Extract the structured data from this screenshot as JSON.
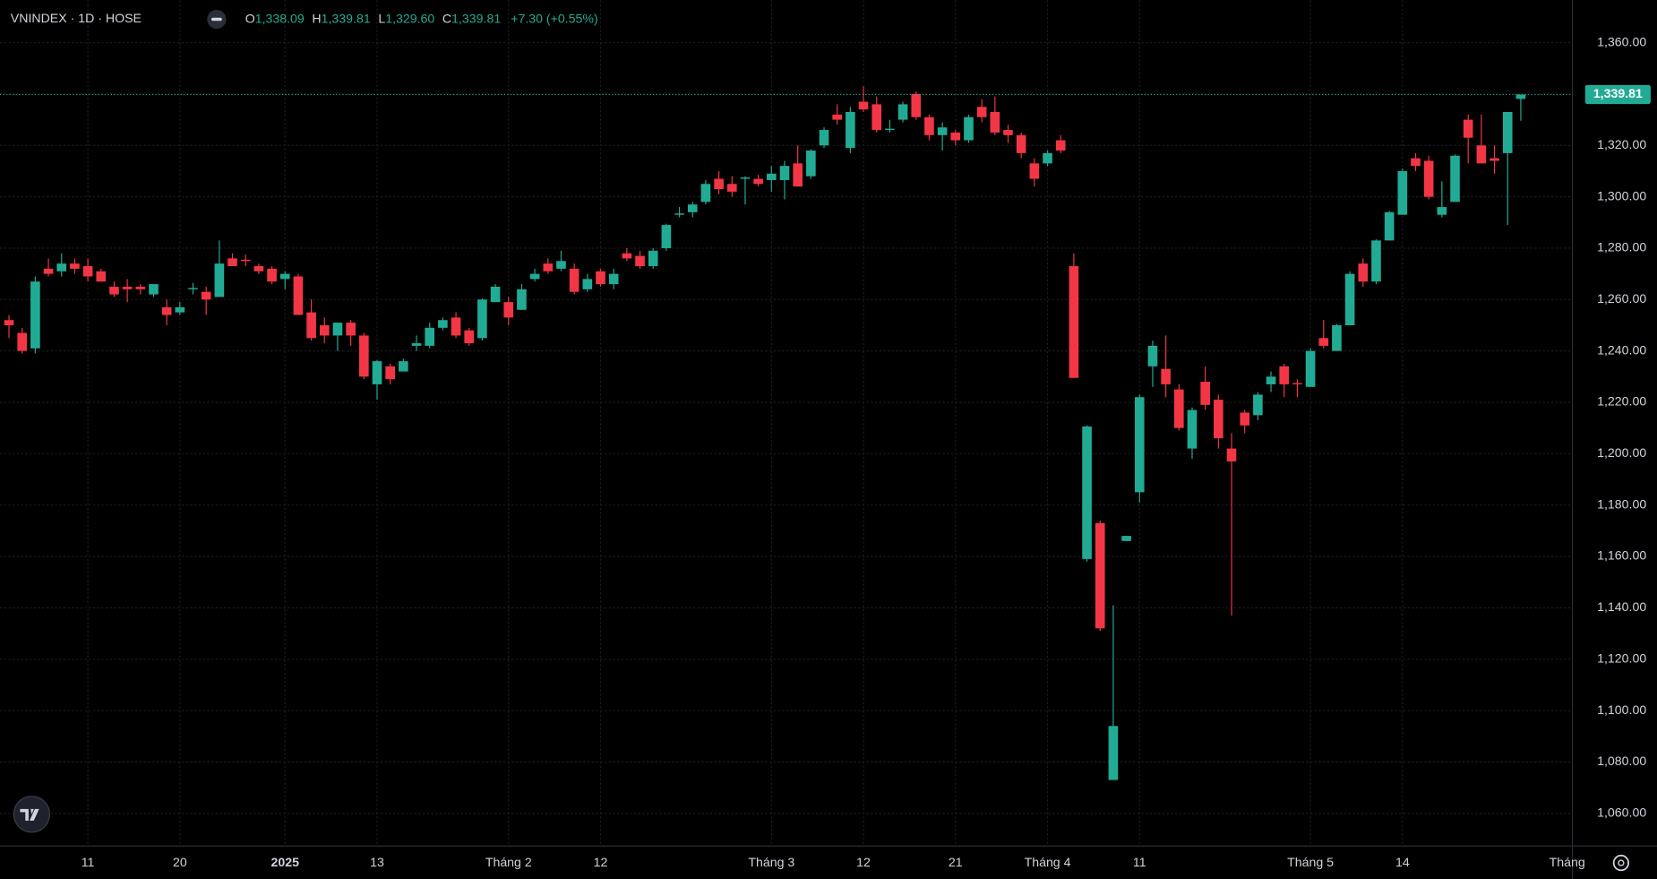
{
  "chart_data": {
    "type": "candlestick",
    "symbol": "VNINDEX · 1D · HOSE",
    "ohlc": [
      {
        "label": "O",
        "value": "1,338.09"
      },
      {
        "label": "H",
        "value": "1,339.81"
      },
      {
        "label": "L",
        "value": "1,329.60"
      },
      {
        "label": "C",
        "value": "1,339.81"
      }
    ],
    "change": "+7.30 (+0.55%)",
    "last_price_label": "1,339.81",
    "timeframe_button": "Tháng",
    "up_color": "#22ab94",
    "down_color": "#f23645",
    "grid": true,
    "categories": [
      null,
      null,
      null,
      null,
      null,
      null,
      "11",
      null,
      null,
      null,
      null,
      null,
      null,
      "20",
      null,
      null,
      null,
      null,
      null,
      null,
      null,
      "2025",
      null,
      null,
      null,
      null,
      null,
      null,
      "13",
      null,
      null,
      null,
      null,
      null,
      null,
      null,
      null,
      null,
      "Tháng 2",
      null,
      null,
      null,
      null,
      null,
      null,
      "12",
      null,
      null,
      null,
      null,
      null,
      null,
      null,
      null,
      null,
      null,
      null,
      null,
      "Tháng 3",
      null,
      null,
      null,
      null,
      null,
      null,
      "12",
      null,
      null,
      null,
      null,
      null,
      null,
      "21",
      null,
      null,
      null,
      null,
      null,
      null,
      "Tháng 4",
      null,
      null,
      null,
      null,
      null,
      null,
      "11",
      null,
      null,
      null,
      null,
      null,
      null,
      null,
      null,
      null,
      null,
      null,
      null,
      "Tháng 5",
      null,
      null,
      null,
      null,
      null,
      null,
      "14",
      null,
      null,
      null,
      null,
      null,
      null,
      null,
      null,
      null
    ],
    "open": [
      1252,
      1247,
      1241,
      1272,
      1271,
      1274,
      1273,
      1271,
      1265,
      1265,
      1265,
      1262,
      1257,
      1255,
      1264,
      1263,
      1261,
      1276,
      1275.5,
      1273,
      1272,
      1268,
      1269,
      1255,
      1250,
      1246,
      1251,
      1246,
      1227,
      1234,
      1232,
      1242,
      1242,
      1249,
      1253,
      1248,
      1245,
      1259,
      1259,
      1256,
      1268,
      1274,
      1272,
      1272,
      1264,
      1271,
      1266,
      1278,
      1277,
      1273,
      1280,
      1293,
      1294,
      1298,
      1307,
      1305,
      1307,
      1307,
      1306.5,
      1306.5,
      1313,
      1308,
      1320,
      1332,
      1319,
      1337,
      1336,
      1326,
      1330,
      1340,
      1331,
      1324,
      1325,
      1322,
      1335,
      1333,
      1326,
      1324,
      1313,
      1313,
      1322,
      1273,
      1159,
      1173,
      1073,
      1166,
      1185,
      1234,
      1233,
      1225,
      1202,
      1228,
      1221,
      1202,
      1216,
      1215,
      1227,
      1234,
      1227.5,
      1226,
      1245,
      1240,
      1250,
      1274,
      1267,
      1283,
      1293,
      1315,
      1314,
      1293,
      1298,
      1330,
      1320,
      1315,
      1317,
      1338.09
    ],
    "high": [
      1254,
      1249,
      1269,
      1276,
      1278,
      1276,
      1276,
      1272,
      1267,
      1268,
      1266,
      1266,
      1260,
      1259,
      1266.5,
      1265,
      1283,
      1278,
      1277.5,
      1274,
      1273,
      1271,
      1270,
      1260,
      1253,
      1251,
      1252,
      1247,
      1236.5,
      1235,
      1237,
      1246,
      1251,
      1253,
      1255,
      1249,
      1260.5,
      1266,
      1261,
      1266,
      1272,
      1276,
      1279,
      1274,
      1270,
      1272,
      1272,
      1280,
      1279,
      1280,
      1289.5,
      1296,
      1298,
      1306.5,
      1310,
      1308,
      1308,
      1308.5,
      1312,
      1314,
      1320,
      1318.5,
      1327,
      1336,
      1335,
      1343,
      1339,
      1330,
      1337,
      1341,
      1332,
      1329,
      1326,
      1332,
      1338,
      1339,
      1328,
      1325,
      1315,
      1318,
      1324,
      1278,
      1211,
      1174,
      1141,
      1168,
      1223,
      1244,
      1246,
      1227,
      1218,
      1234,
      1223,
      1208,
      1217,
      1224,
      1232,
      1235,
      1229,
      1241,
      1252,
      1250.5,
      1271,
      1276,
      1283.5,
      1294.5,
      1311,
      1317,
      1316,
      1306,
      1316.5,
      1332,
      1332,
      1320,
      1333,
      1339.81
    ],
    "low": [
      1245,
      1239,
      1239,
      1269,
      1269,
      1270,
      1267,
      1267,
      1261,
      1259,
      1262,
      1261,
      1250,
      1254,
      1262,
      1254,
      1261,
      1273,
      1273,
      1270,
      1266,
      1264,
      1254,
      1244,
      1243,
      1240,
      1242,
      1229,
      1221,
      1227,
      1232,
      1240,
      1241,
      1248,
      1245,
      1242,
      1244,
      1259,
      1250,
      1256,
      1267,
      1270,
      1271,
      1262,
      1263,
      1265,
      1264,
      1275,
      1272,
      1272,
      1279,
      1292,
      1292,
      1297,
      1301,
      1300,
      1297,
      1304,
      1302,
      1299,
      1304,
      1307,
      1319,
      1328,
      1317,
      1333,
      1325,
      1325,
      1329,
      1330,
      1322,
      1318,
      1320,
      1321,
      1329,
      1324,
      1321,
      1315,
      1304,
      1312,
      1317,
      1230,
      1158,
      1131,
      1073,
      1166,
      1181,
      1226,
      1222,
      1209,
      1198,
      1217,
      1202,
      1137,
      1208,
      1213,
      1224,
      1222,
      1222,
      1226,
      1241,
      1240,
      1250,
      1265,
      1266,
      1283,
      1293,
      1310,
      1299,
      1292,
      1298,
      1313,
      1313,
      1309,
      1289,
      1329.6
    ],
    "close": [
      1250,
      1240,
      1267,
      1270,
      1274,
      1272,
      1269,
      1267,
      1262,
      1264,
      1264,
      1266,
      1254,
      1257,
      1264.5,
      1260,
      1274,
      1273,
      1275,
      1271,
      1267,
      1270,
      1254,
      1245,
      1246,
      1251,
      1246,
      1230,
      1236,
      1229,
      1236,
      1243,
      1249,
      1252,
      1246,
      1243,
      1260,
      1265,
      1253,
      1264,
      1270,
      1271,
      1275,
      1263,
      1268,
      1266,
      1270,
      1276,
      1273,
      1279,
      1289,
      1293.5,
      1297,
      1305,
      1303,
      1302,
      1307.5,
      1305,
      1309,
      1312,
      1304,
      1318,
      1326,
      1330,
      1333,
      1334,
      1326,
      1326.5,
      1336,
      1331,
      1324,
      1327,
      1322,
      1331,
      1331,
      1325,
      1324,
      1317,
      1307,
      1317,
      1318,
      1229.5,
      1210.6,
      1132,
      1094,
      1168,
      1222,
      1242,
      1227,
      1210,
      1217,
      1219,
      1206,
      1197,
      1211,
      1223,
      1230,
      1227,
      1227,
      1240,
      1242,
      1250,
      1270,
      1267,
      1283,
      1294,
      1310,
      1312,
      1300,
      1296,
      1316,
      1323,
      1313,
      1314,
      1333,
      1339.81
    ],
    "ylim": [
      1047.3,
      1376.5
    ],
    "yticks": [
      {
        "value": 1060,
        "label": "1,060.00"
      },
      {
        "value": 1080,
        "label": "1,080.00"
      },
      {
        "value": 1100,
        "label": "1,100.00"
      },
      {
        "value": 1120,
        "label": "1,120.00"
      },
      {
        "value": 1140,
        "label": "1,140.00"
      },
      {
        "value": 1160,
        "label": "1,160.00"
      },
      {
        "value": 1180,
        "label": "1,180.00"
      },
      {
        "value": 1200,
        "label": "1,200.00"
      },
      {
        "value": 1220,
        "label": "1,220.00"
      },
      {
        "value": 1240,
        "label": "1,240.00"
      },
      {
        "value": 1260,
        "label": "1,260.00"
      },
      {
        "value": 1280,
        "label": "1,280.00"
      },
      {
        "value": 1300,
        "label": "1,300.00"
      },
      {
        "value": 1320,
        "label": "1,320.00"
      },
      {
        "value": 1340,
        "label": "1,340.00"
      },
      {
        "value": 1360,
        "label": "1,360.00"
      }
    ]
  }
}
